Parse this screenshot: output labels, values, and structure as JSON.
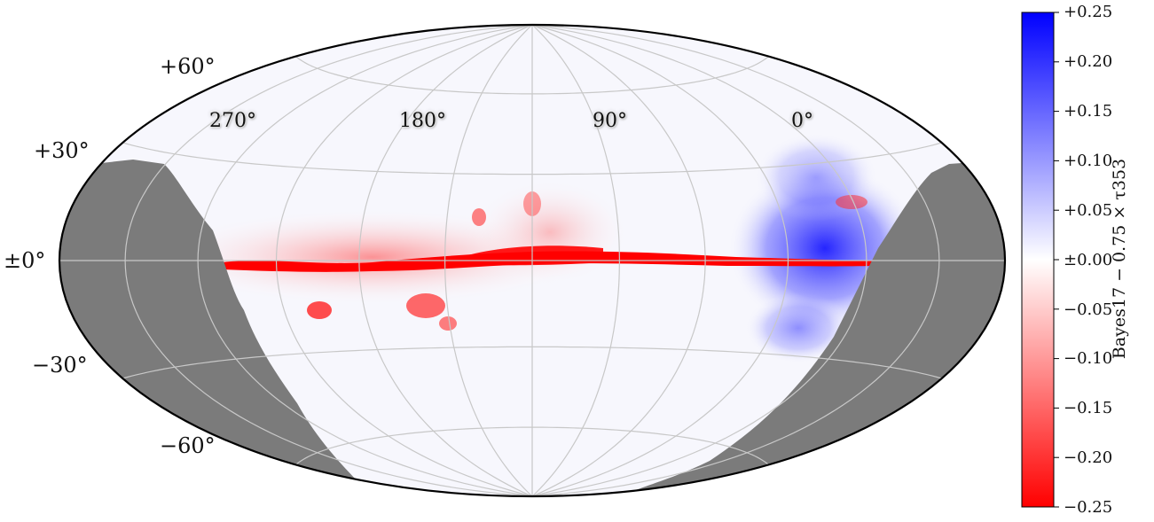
{
  "map": {
    "projection": "Hammer-Aitoff all-sky",
    "latitude_labels": [
      "+60°",
      "+30°",
      "±0°",
      "−30°",
      "−60°"
    ],
    "longitude_labels": [
      "270°",
      "180°",
      "90°",
      "0°"
    ],
    "masked_color": "#7b7b7b",
    "positive_color": "#0000ff",
    "negative_color": "#ff0000",
    "zero_color": "#ffffff"
  },
  "colorbar": {
    "label": "Bayes17 − 0.75 × τ353",
    "range": [
      -0.25,
      0.25
    ],
    "tick_labels": [
      "+0.25",
      "+0.20",
      "+0.15",
      "+0.10",
      "+0.05",
      "±0.00",
      "−0.05",
      "−0.10",
      "−0.15",
      "−0.20",
      "−0.25"
    ]
  }
}
